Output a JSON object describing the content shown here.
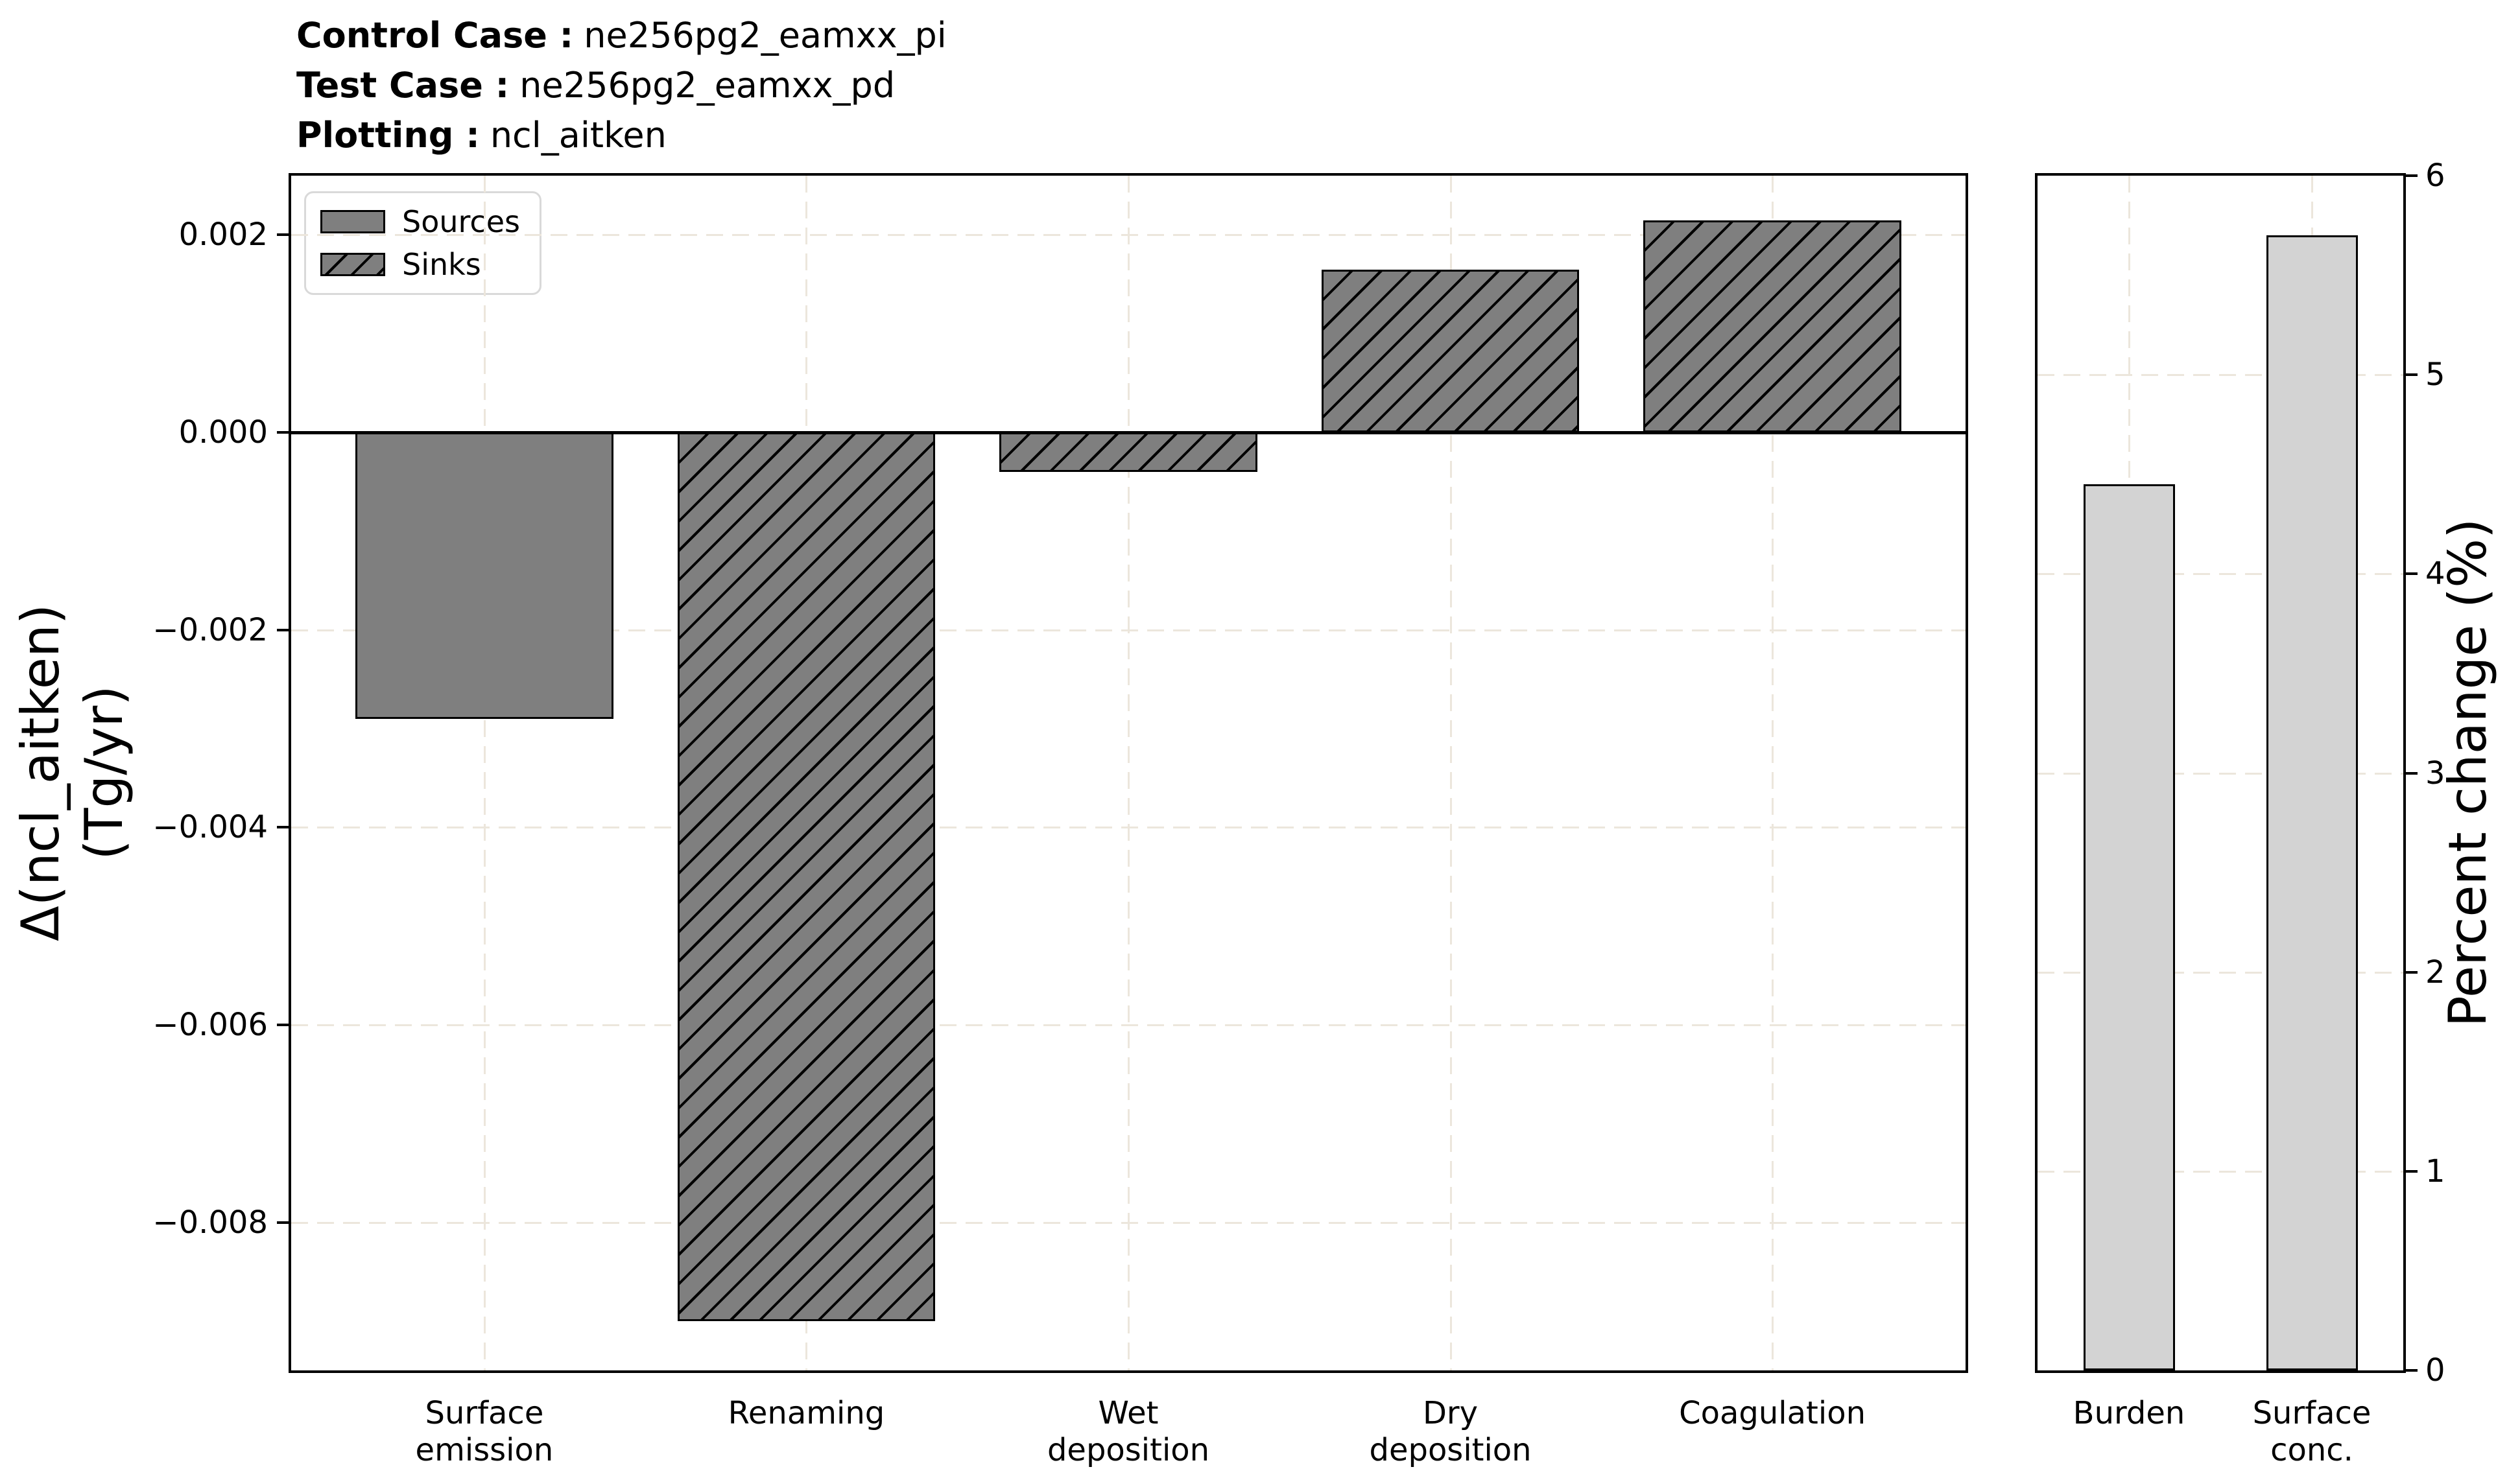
{
  "header": {
    "lines": [
      {
        "label": "Control Case :",
        "value": "ne256pg2_eamxx_pi"
      },
      {
        "label": "Test Case :",
        "value": "ne256pg2_eamxx_pd"
      },
      {
        "label": "Plotting :",
        "value": "ncl_aitken"
      }
    ]
  },
  "legend": {
    "items": [
      {
        "label": "Sources",
        "patch": "solid"
      },
      {
        "label": "Sinks",
        "patch": "hatched"
      }
    ]
  },
  "chart_data": [
    {
      "type": "bar",
      "panel": "budget-terms",
      "categories": [
        "Surface emission",
        "Renaming",
        "Wet deposition",
        "Dry deposition",
        "Coagulation"
      ],
      "category_lines": [
        [
          "Surface",
          "emission"
        ],
        [
          "Renaming"
        ],
        [
          "Wet",
          "deposition"
        ],
        [
          "Dry",
          "deposition"
        ],
        [
          "Coagulation"
        ]
      ],
      "values": [
        -0.0029,
        -0.009,
        -0.0004,
        0.00165,
        0.00215
      ],
      "styles": [
        "solid",
        "hatched",
        "hatched",
        "hatched",
        "hatched"
      ],
      "series": [
        {
          "name": "Sources",
          "style": "solid",
          "categories": [
            "Surface emission"
          ],
          "values": [
            -0.0029
          ]
        },
        {
          "name": "Sinks",
          "style": "hatched",
          "categories": [
            "Renaming",
            "Wet deposition",
            "Dry deposition",
            "Coagulation"
          ],
          "values": [
            -0.009,
            -0.0004,
            0.00165,
            0.00215
          ]
        }
      ],
      "ylabel_lines": [
        "Δ(ncl_aitken)",
        "(Tg/yr)"
      ],
      "ylim": [
        -0.0095,
        0.0026
      ],
      "yticks": [
        0.002,
        0.0,
        -0.002,
        -0.004,
        -0.006,
        -0.008
      ],
      "ytick_labels": [
        "0.002",
        "0.000",
        "−0.002",
        "−0.004",
        "−0.006",
        "−0.008"
      ],
      "yaxis_side": "left",
      "zero_line": 0,
      "grid": true,
      "legend_position": "upper left"
    },
    {
      "type": "bar",
      "panel": "percent-change",
      "categories": [
        "Burden",
        "Surface conc."
      ],
      "category_lines": [
        [
          "Burden"
        ],
        [
          "Surface",
          "conc."
        ]
      ],
      "values": [
        4.45,
        5.7
      ],
      "styles": [
        "percent",
        "percent"
      ],
      "ylabel_lines": [
        "Percent change (%)"
      ],
      "ylim": [
        0,
        6
      ],
      "yticks": [
        6,
        5,
        4,
        3,
        2,
        1,
        0
      ],
      "ytick_labels": [
        "6",
        "5",
        "4",
        "3",
        "2",
        "1",
        "0"
      ],
      "yaxis_side": "right",
      "grid": true
    }
  ],
  "colors": {
    "source_bar_fill": "#7f7f7f",
    "sink_bar_fill": "#7f7f7f",
    "percent_bar_fill": "#d3d3d3",
    "bar_edge": "#000000",
    "hatch": "#000000",
    "grid": "#ece6dc",
    "legend_border": "#d9d9d9",
    "text": "#000000",
    "background": "#ffffff"
  }
}
